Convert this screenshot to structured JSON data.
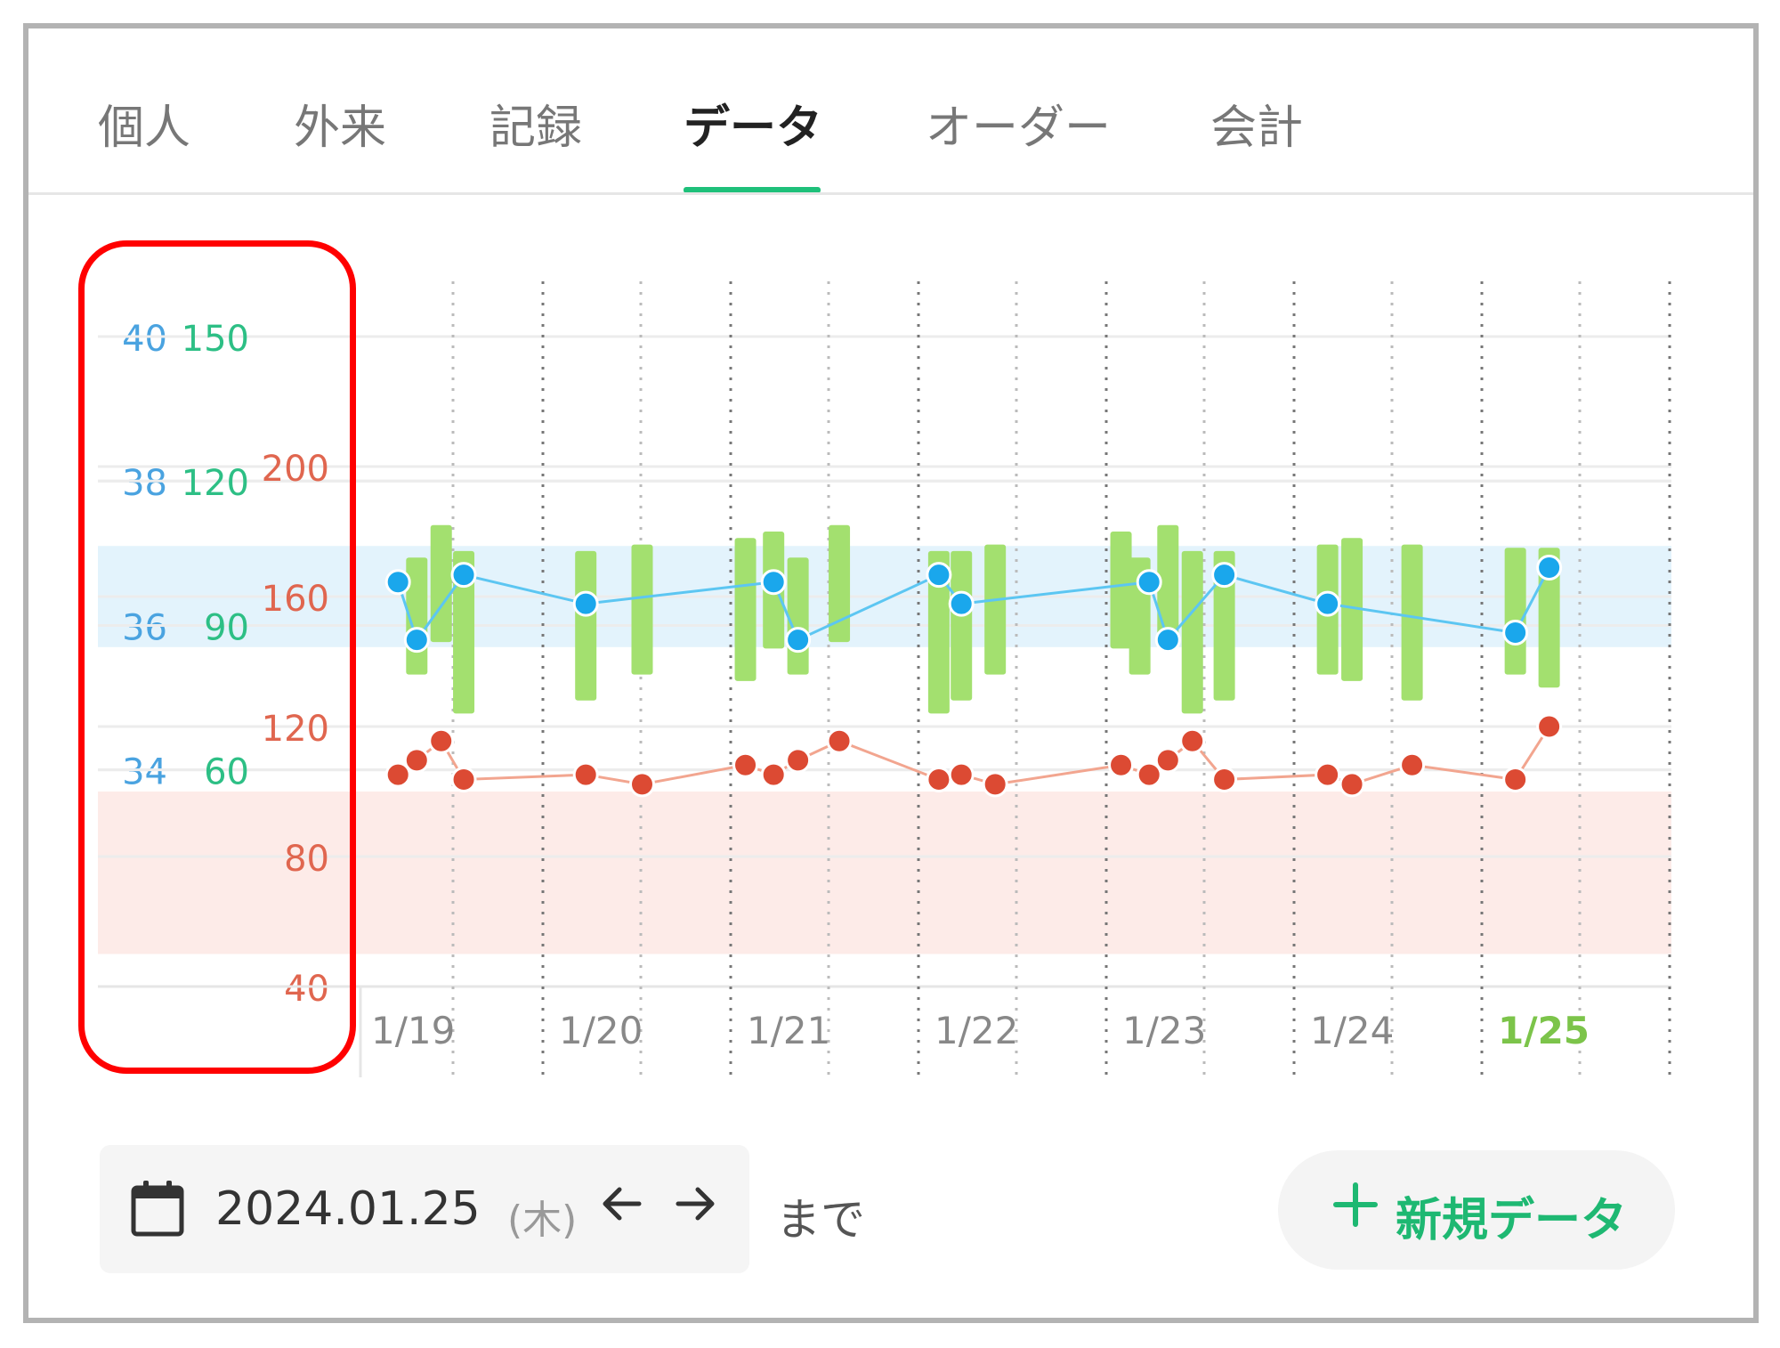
{
  "tabs": [
    {
      "label": "個人"
    },
    {
      "label": "外来"
    },
    {
      "label": "記録"
    },
    {
      "label": "データ"
    },
    {
      "label": "オーダー"
    },
    {
      "label": "会計"
    }
  ],
  "active_tab_index": 3,
  "footer": {
    "date": "2024.01.25",
    "weekday": "(木)",
    "until_label": "まで",
    "new_button_label": "新規データ"
  },
  "colors": {
    "temperature": "#1aa7ec",
    "pulse": "#2dbf85",
    "bp": "#e8503a",
    "bp_bar": "#a3e06f",
    "accent": "#1ec07a",
    "highlight": "#ff0000"
  },
  "icons": {
    "calendar": "calendar-icon",
    "prev": "arrow-left-icon",
    "next": "arrow-right-icon",
    "add": "plus-icon"
  },
  "chart_data": {
    "type": "line",
    "x_labels": [
      "1/19",
      "1/20",
      "1/21",
      "1/22",
      "1/23",
      "1/24",
      "1/25"
    ],
    "x_highlight": "1/25",
    "xlim": [
      0,
      7
    ],
    "axes": {
      "temperature": {
        "ticks": [
          34,
          36,
          38,
          40
        ],
        "lim": [
          31.0,
          40.0
        ]
      },
      "pulse": {
        "ticks": [
          60,
          90,
          120,
          150
        ],
        "lim": [
          15,
          150
        ]
      },
      "bp": {
        "ticks": [
          40,
          80,
          120,
          160,
          200
        ],
        "lim": [
          40,
          240
        ]
      }
    },
    "bands": [
      {
        "axis": "temperature",
        "range": [
          35.7,
          37.1
        ]
      },
      {
        "axis": "bp",
        "range": [
          50,
          100
        ]
      }
    ],
    "series": [
      {
        "axis": "temperature",
        "type": "line",
        "x": [
          0.2,
          0.3,
          0.55,
          1.2,
          2.2,
          2.33,
          3.08,
          3.2,
          4.2,
          4.3,
          4.6,
          5.15,
          6.15,
          6.33
        ],
        "y": [
          36.6,
          35.8,
          36.7,
          36.3,
          36.6,
          35.8,
          36.7,
          36.3,
          36.6,
          35.8,
          36.7,
          36.3,
          35.9,
          36.8
        ]
      },
      {
        "axis": "pulse",
        "type": "line",
        "x": [
          0.2,
          0.3,
          0.43,
          0.55,
          1.2,
          1.5,
          2.05,
          2.2,
          2.33,
          2.55,
          3.08,
          3.2,
          3.38,
          4.05,
          4.2,
          4.3,
          4.43,
          4.6,
          5.15,
          5.28,
          5.6,
          6.15,
          6.33
        ],
        "y": [
          59,
          62,
          66,
          58,
          59,
          57,
          61,
          59,
          62,
          66,
          58,
          59,
          57,
          61,
          59,
          62,
          66,
          58,
          59,
          57,
          61,
          58,
          69
        ]
      },
      {
        "axis": "bp",
        "type": "range_bar",
        "x": [
          0.3,
          0.43,
          0.55,
          1.2,
          1.5,
          2.05,
          2.2,
          2.33,
          2.55,
          3.08,
          3.2,
          3.38,
          4.05,
          4.15,
          4.3,
          4.43,
          4.6,
          5.15,
          5.28,
          5.6,
          6.15,
          6.33
        ],
        "low": [
          136,
          146,
          124,
          128,
          136,
          134,
          144,
          136,
          146,
          124,
          128,
          136,
          144,
          136,
          146,
          124,
          128,
          136,
          134,
          128,
          136,
          132
        ],
        "high": [
          172,
          182,
          174,
          174,
          176,
          178,
          180,
          172,
          182,
          174,
          174,
          176,
          180,
          172,
          182,
          174,
          174,
          176,
          178,
          176,
          175,
          175
        ]
      }
    ]
  }
}
